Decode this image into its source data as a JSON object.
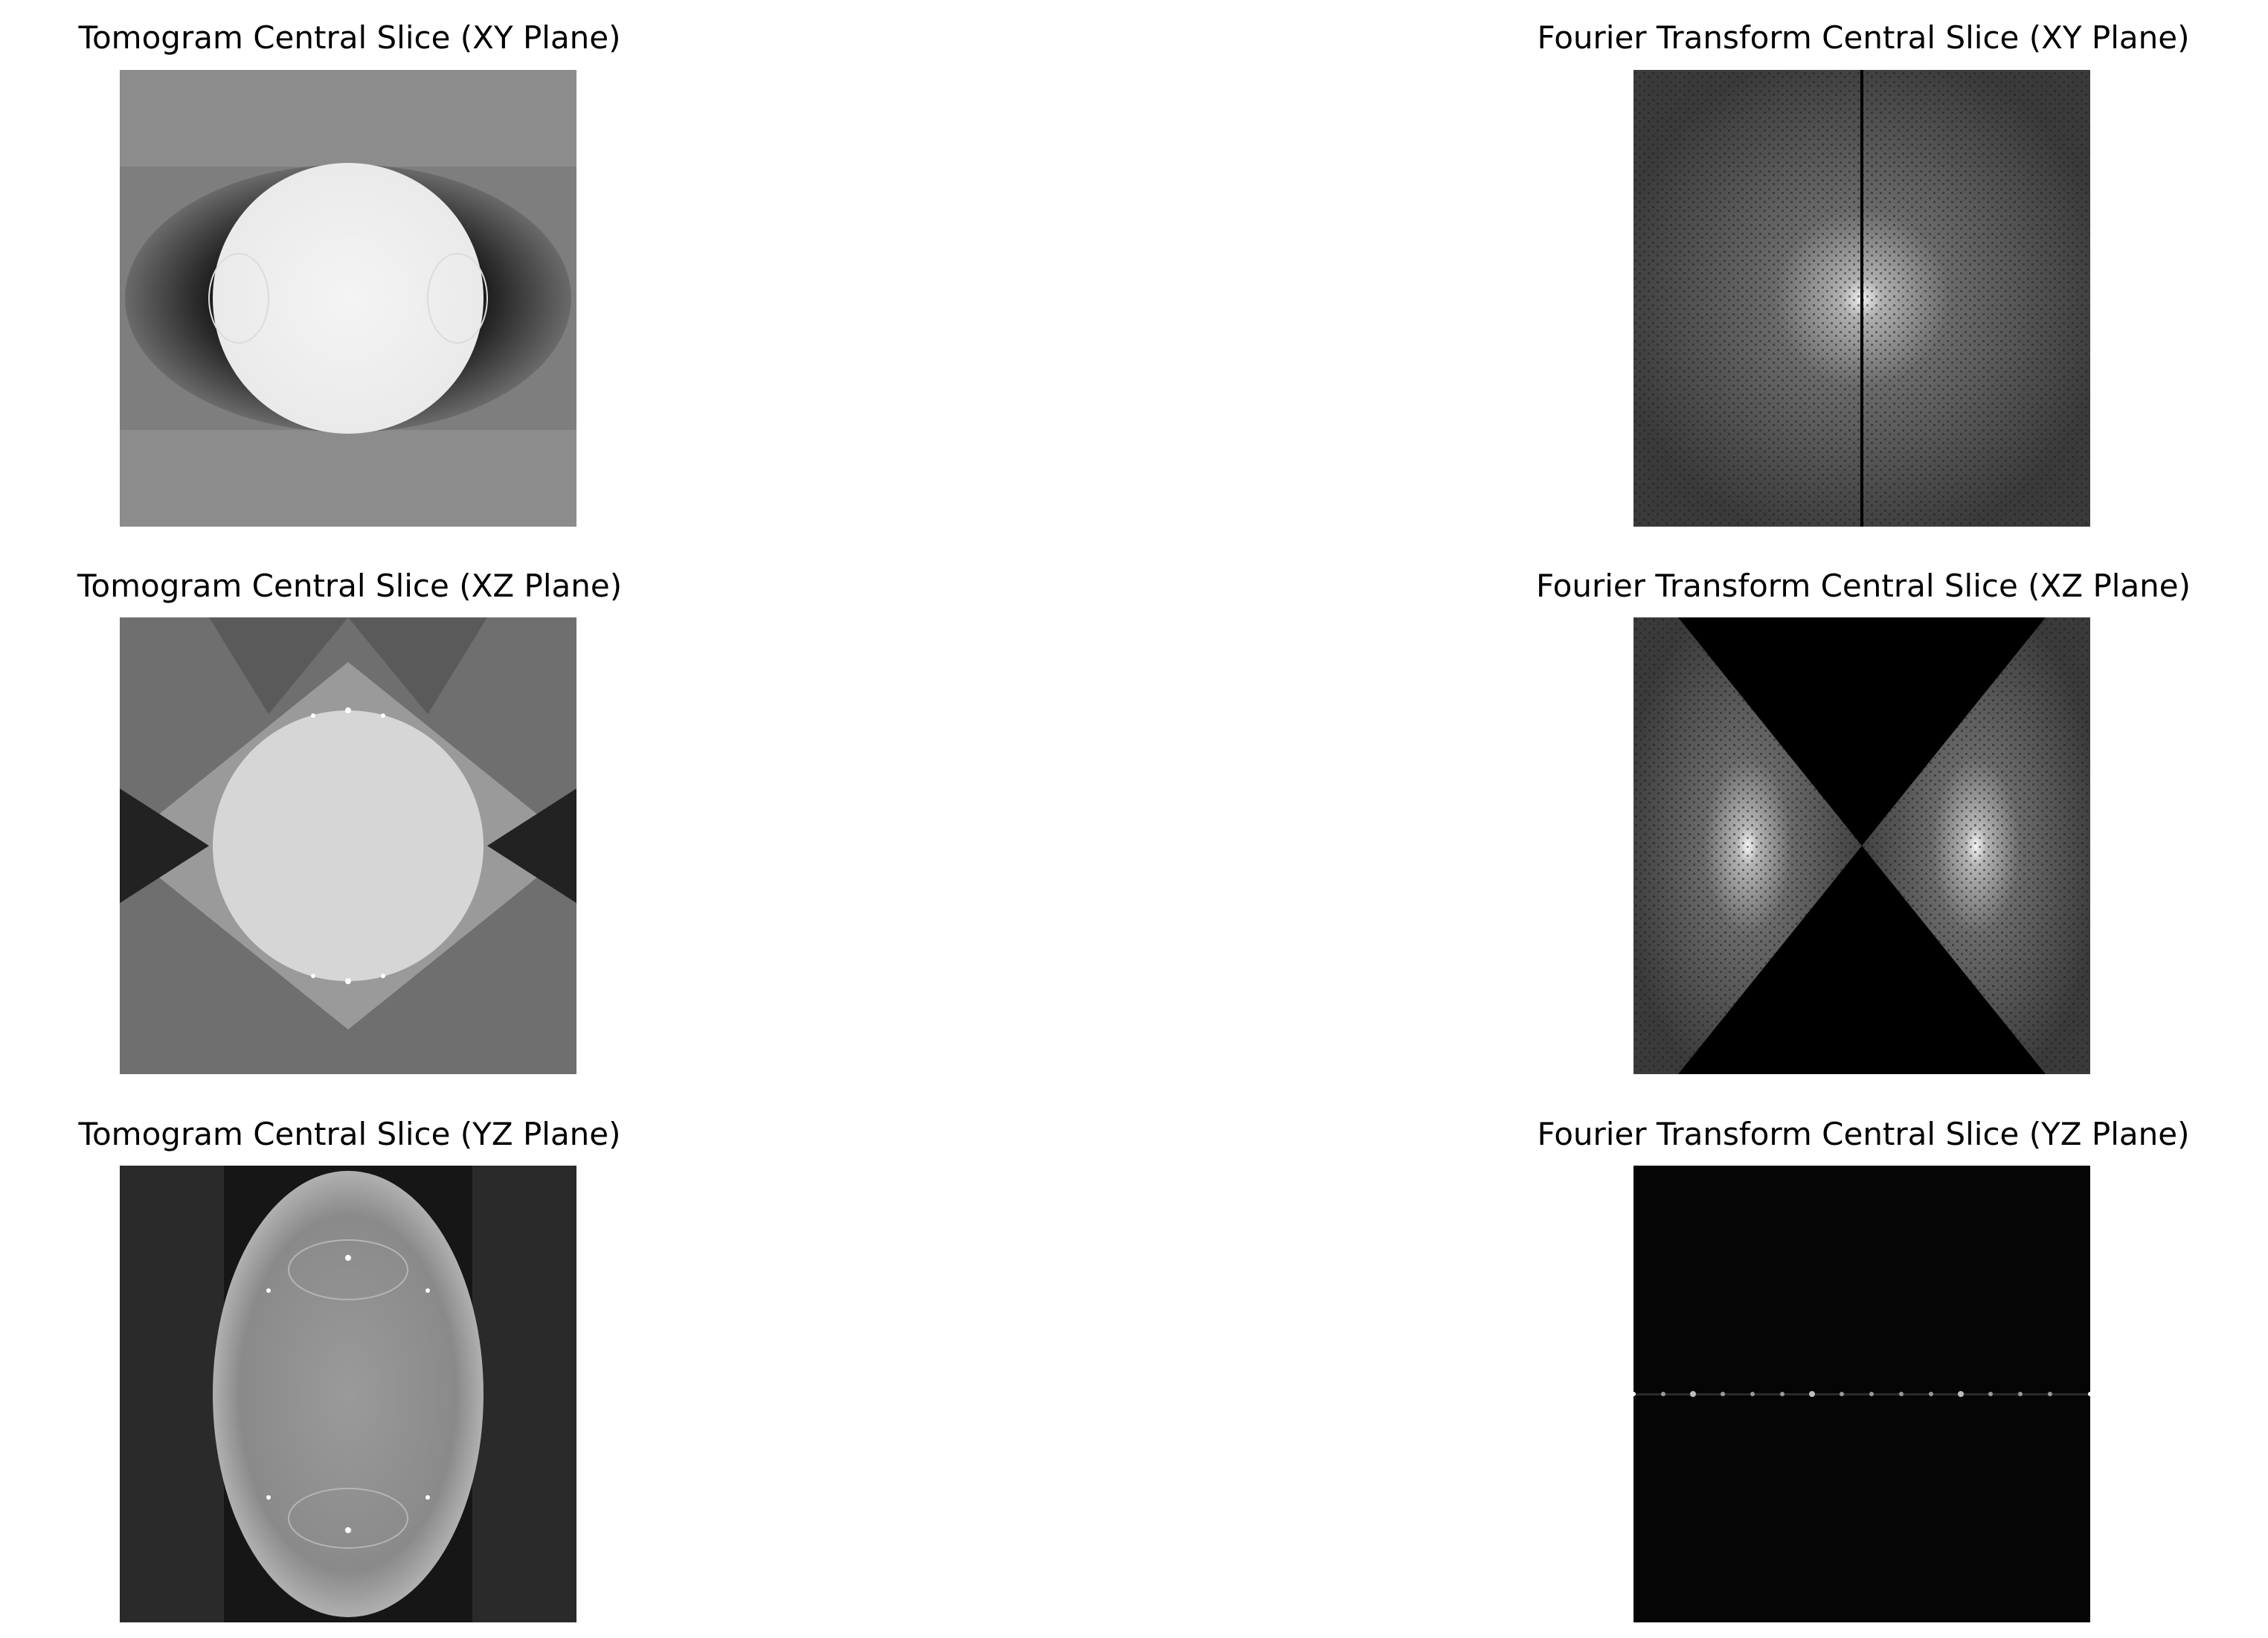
{
  "figure": {
    "panels": [
      {
        "id": "tomo-xy",
        "title": "Tomogram Central Slice (XY Plane)"
      },
      {
        "id": "ft-xy",
        "title": "Fourier Transform Central Slice (XY Plane)"
      },
      {
        "id": "tomo-xz",
        "title": "Tomogram Central Slice (XZ Plane)"
      },
      {
        "id": "ft-xz",
        "title": "Fourier Transform Central Slice (XZ Plane)"
      },
      {
        "id": "tomo-yz",
        "title": "Tomogram Central Slice (YZ Plane)"
      },
      {
        "id": "ft-yz",
        "title": "Fourier Transform Central Slice (YZ Plane)"
      }
    ],
    "colormap": "gray"
  }
}
